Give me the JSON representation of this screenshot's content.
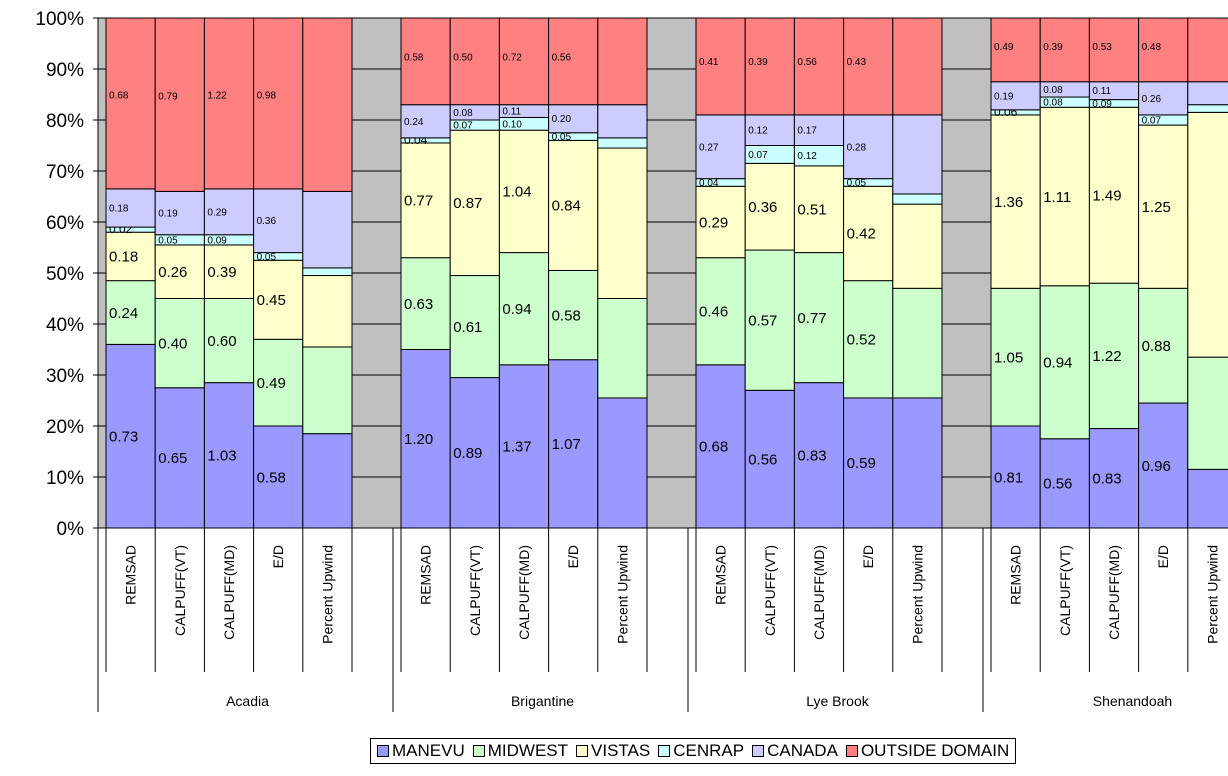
{
  "chart_data": {
    "type": "bar",
    "stacked": true,
    "normalized": true,
    "yticks": [
      "0%",
      "10%",
      "20%",
      "30%",
      "40%",
      "50%",
      "60%",
      "70%",
      "80%",
      "90%",
      "100%"
    ],
    "ylim": [
      0,
      100
    ],
    "plot_background": "#c0c0c0",
    "gridlines": true,
    "legend_position": "bottom",
    "series": [
      {
        "name": "MANEVU",
        "color": "#9999ff"
      },
      {
        "name": "MIDWEST",
        "color": "#ccffcc"
      },
      {
        "name": "VISTAS",
        "color": "#ffffcc"
      },
      {
        "name": "CENRAP",
        "color": "#ccffff"
      },
      {
        "name": "CANADA",
        "color": "#ccccff"
      },
      {
        "name": "OUTSIDE DOMAIN",
        "color": "#ff8080"
      }
    ],
    "groups": [
      {
        "name": "Acadia",
        "bars": [
          {
            "label": "REMSAD",
            "pct": [
              36,
              12.5,
              9.5,
              1,
              7.5,
              33.5
            ],
            "labels": [
              "0.73",
              "0.24",
              "0.18",
              "0.02",
              "0.18",
              "0.68"
            ]
          },
          {
            "label": "CALPUFF(VT)",
            "pct": [
              27.5,
              17.5,
              10.5,
              2,
              8.5,
              34
            ],
            "labels": [
              "0.65",
              "0.40",
              "0.26",
              "0.05",
              "0.19",
              "0.79"
            ]
          },
          {
            "label": "CALPUFF(MD)",
            "pct": [
              28.5,
              16.5,
              10.5,
              2,
              9,
              33.5
            ],
            "labels": [
              "1.03",
              "0.60",
              "0.39",
              "0.09",
              "0.29",
              "1.22"
            ]
          },
          {
            "label": "E/D",
            "pct": [
              20,
              17,
              15.5,
              1.5,
              12.5,
              33.5
            ],
            "labels": [
              "0.58",
              "0.49",
              "0.45",
              "0.05",
              "0.36",
              "0.98"
            ]
          },
          {
            "label": "Percent Upwind",
            "pct": [
              18.5,
              17,
              14,
              1.5,
              15,
              34
            ],
            "labels": [
              "",
              "",
              "",
              "",
              "",
              ""
            ]
          }
        ]
      },
      {
        "name": "Brigantine",
        "bars": [
          {
            "label": "REMSAD",
            "pct": [
              35,
              18,
              22.5,
              1,
              6.5,
              17
            ],
            "labels": [
              "1.20",
              "0.63",
              "0.77",
              "0.04",
              "0.24",
              "0.58"
            ]
          },
          {
            "label": "CALPUFF(VT)",
            "pct": [
              29.5,
              20,
              28.5,
              2,
              3,
              17
            ],
            "labels": [
              "0.89",
              "0.61",
              "0.87",
              "0.07",
              "0.08",
              "0.50"
            ]
          },
          {
            "label": "CALPUFF(MD)",
            "pct": [
              32,
              22,
              24,
              2.5,
              2.5,
              17
            ],
            "labels": [
              "1.37",
              "0.94",
              "1.04",
              "0.10",
              "0.11",
              "0.72"
            ]
          },
          {
            "label": "E/D",
            "pct": [
              33,
              17.5,
              25.5,
              1.5,
              5.5,
              17
            ],
            "labels": [
              "1.07",
              "0.58",
              "0.84",
              "0.05",
              "0.20",
              "0.56"
            ]
          },
          {
            "label": "Percent Upwind",
            "pct": [
              25.5,
              19.5,
              29.5,
              2,
              6.5,
              17
            ],
            "labels": [
              "",
              "",
              "",
              "",
              "",
              ""
            ]
          }
        ]
      },
      {
        "name": "Lye Brook",
        "bars": [
          {
            "label": "REMSAD",
            "pct": [
              32,
              21,
              14,
              1.5,
              12.5,
              19
            ],
            "labels": [
              "0.68",
              "0.46",
              "0.29",
              "0.04",
              "0.27",
              "0.41"
            ]
          },
          {
            "label": "CALPUFF(VT)",
            "pct": [
              27,
              27.5,
              17,
              3.5,
              6,
              19
            ],
            "labels": [
              "0.56",
              "0.57",
              "0.36",
              "0.07",
              "0.12",
              "0.39"
            ]
          },
          {
            "label": "CALPUFF(MD)",
            "pct": [
              28.5,
              25.5,
              17,
              4,
              6,
              19
            ],
            "labels": [
              "0.83",
              "0.77",
              "0.51",
              "0.12",
              "0.17",
              "0.56"
            ]
          },
          {
            "label": "E/D",
            "pct": [
              25.5,
              23,
              18.5,
              1.5,
              12.5,
              19
            ],
            "labels": [
              "0.59",
              "0.52",
              "0.42",
              "0.05",
              "0.28",
              "0.43"
            ]
          },
          {
            "label": "Percent Upwind",
            "pct": [
              25.5,
              21.5,
              16.5,
              2,
              15.5,
              19
            ],
            "labels": [
              "",
              "",
              "",
              "",
              "",
              ""
            ]
          }
        ]
      },
      {
        "name": "Shenandoah",
        "bars": [
          {
            "label": "REMSAD",
            "pct": [
              20,
              27,
              34,
              1,
              5.5,
              12.5
            ],
            "labels": [
              "0.81",
              "1.05",
              "1.36",
              "0.06",
              "0.19",
              "0.49"
            ]
          },
          {
            "label": "CALPUFF(VT)",
            "pct": [
              17.5,
              30,
              35,
              2,
              3,
              12.5
            ],
            "labels": [
              "0.56",
              "0.94",
              "1.11",
              "0.08",
              "0.08",
              "0.39"
            ]
          },
          {
            "label": "CALPUFF(MD)",
            "pct": [
              19.5,
              28.5,
              34.5,
              1.5,
              3.5,
              12.5
            ],
            "labels": [
              "0.83",
              "1.22",
              "1.49",
              "0.09",
              "0.11",
              "0.53"
            ]
          },
          {
            "label": "E/D",
            "pct": [
              24.5,
              22.5,
              32,
              2,
              6.5,
              12.5
            ],
            "labels": [
              "0.96",
              "0.88",
              "1.25",
              "0.07",
              "0.26",
              "0.48"
            ]
          },
          {
            "label": "Percent Upwind",
            "pct": [
              11.5,
              22,
              48,
              1.5,
              4.5,
              12.5
            ],
            "labels": [
              "",
              "",
              "",
              "",
              "",
              ""
            ]
          }
        ]
      }
    ]
  }
}
